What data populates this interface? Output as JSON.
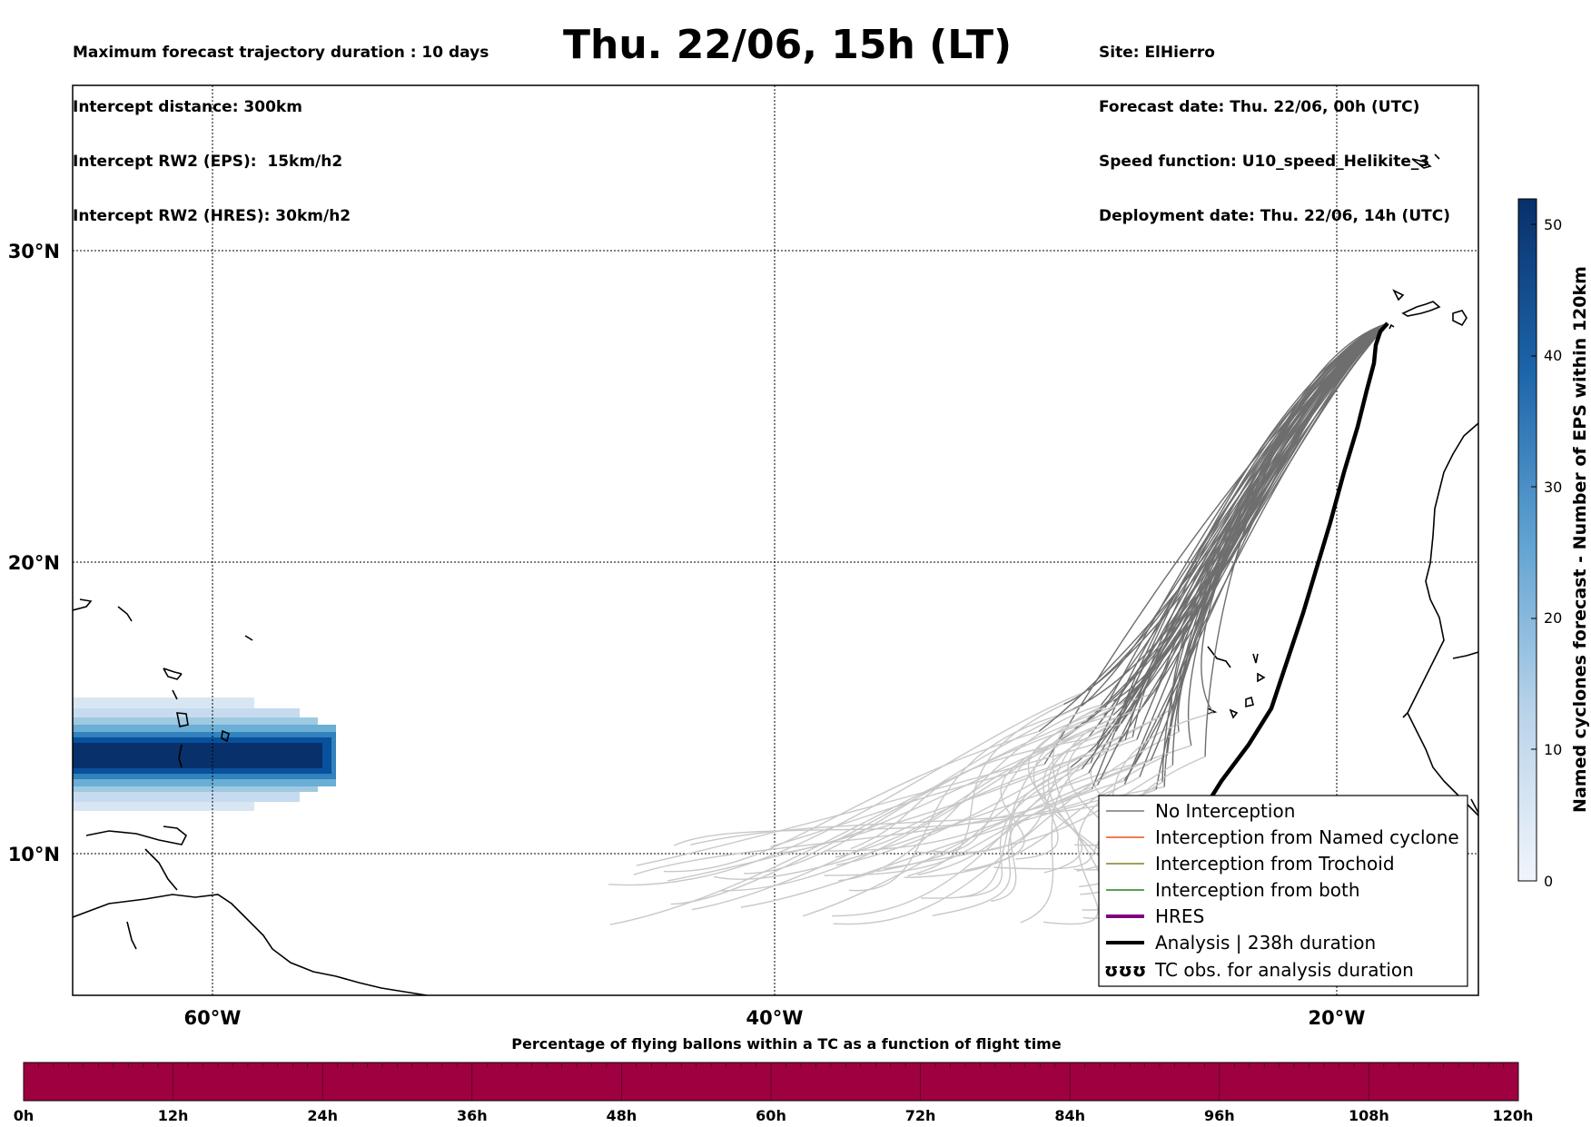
{
  "header": {
    "left_lines": [
      "Maximum forecast trajectory duration : 10 days",
      "Intercept distance: 300km",
      "Intercept RW2 (EPS):  15km/h2",
      "Intercept RW2 (HRES): 30km/h2"
    ],
    "title": "Thu. 22/06, 15h (LT)",
    "right_lines": [
      "Site: ElHierro",
      "Forecast date: Thu. 22/06, 00h (UTC)",
      "Speed function: U10_speed_Helikite_3",
      "Deployment date: Thu. 22/06, 14h (UTC)"
    ]
  },
  "map": {
    "lon_ticks": [
      "60°W",
      "40°W",
      "20°W"
    ],
    "lat_ticks": [
      "30°N",
      "20°N",
      "10°N"
    ],
    "track_colors": {
      "near_site": "#6e6e6e",
      "far": "#c8c8c8",
      "analysis": "#000000"
    }
  },
  "legend": {
    "items": [
      {
        "label": "No Interception",
        "color": "#777777",
        "style": "thin"
      },
      {
        "label": "Interception from Named cyclone",
        "color": "#e8501e",
        "style": "thin"
      },
      {
        "label": "Interception from Trochoid",
        "color": "#808020",
        "style": "thin"
      },
      {
        "label": "Interception from both",
        "color": "#208020",
        "style": "thin"
      },
      {
        "label": "HRES",
        "color": "#800080",
        "style": "thick"
      },
      {
        "label": "Analysis | 238h duration",
        "color": "#000000",
        "style": "thick"
      },
      {
        "label": "TC obs. for analysis duration",
        "color": "#000000",
        "style": "symbol",
        "symbol": "ʊʊʊ"
      }
    ]
  },
  "colorbar": {
    "label": "Named cyclones forecast - Number of EPS within 120km",
    "ticks": [
      "0",
      "10",
      "20",
      "30",
      "40",
      "50"
    ],
    "range": [
      0,
      52
    ],
    "colors": {
      "low": "#e8f0fa",
      "high": "#08306b"
    }
  },
  "timebar": {
    "title": "Percentage of flying ballons within a TC as a function of flight time",
    "ticks": [
      "0h",
      "12h",
      "24h",
      "36h",
      "48h",
      "60h",
      "72h",
      "84h",
      "96h",
      "108h",
      "120h"
    ],
    "color": "#9e0040"
  }
}
